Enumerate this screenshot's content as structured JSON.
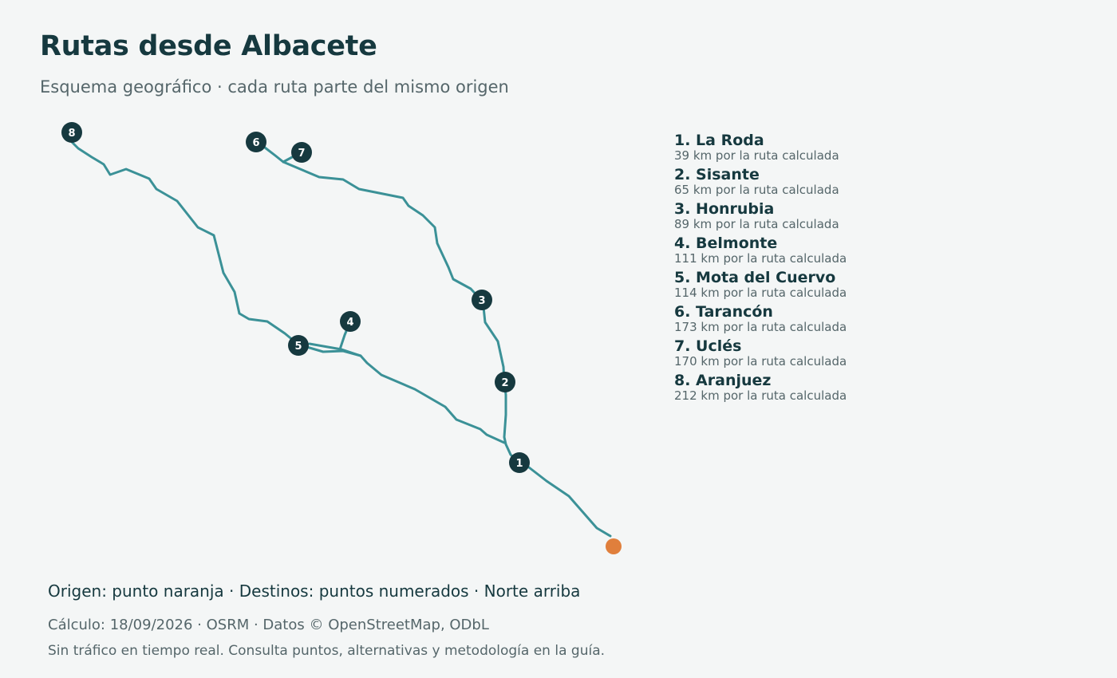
{
  "header": {
    "title": "Rutas desde Albacete",
    "subtitle": "Esquema geográfico · cada ruta parte del mismo origen"
  },
  "colors": {
    "route": "#3b9197",
    "marker": "#16393f",
    "origin": "#e07f3c",
    "title": "#16393f",
    "muted": "#55666a",
    "background": "#f4f6f6"
  },
  "map": {
    "origin": {
      "name": "Albacete",
      "icon": "origin-dot"
    },
    "destinations": [
      {
        "number": "1",
        "name": "La Roda",
        "label": "1. La Roda",
        "distance_km": 39,
        "distance_text": "39 km por la ruta calculada"
      },
      {
        "number": "2",
        "name": "Sisante",
        "label": "2. Sisante",
        "distance_km": 65,
        "distance_text": "65 km por la ruta calculada"
      },
      {
        "number": "3",
        "name": "Honrubia",
        "label": "3. Honrubia",
        "distance_km": 89,
        "distance_text": "89 km por la ruta calculada"
      },
      {
        "number": "4",
        "name": "Belmonte",
        "label": "4. Belmonte",
        "distance_km": 111,
        "distance_text": "111 km por la ruta calculada"
      },
      {
        "number": "5",
        "name": "Mota del Cuervo",
        "label": "5. Mota del Cuervo",
        "distance_km": 114,
        "distance_text": "114 km por la ruta calculada"
      },
      {
        "number": "6",
        "name": "Tarancón",
        "label": "6. Tarancón",
        "distance_km": 173,
        "distance_text": "173 km por la ruta calculada"
      },
      {
        "number": "7",
        "name": "Uclés",
        "label": "7. Uclés",
        "distance_km": 170,
        "distance_text": "170 km por la ruta calculada"
      },
      {
        "number": "8",
        "name": "Aranjuez",
        "label": "8. Aranjuez",
        "distance_km": 212,
        "distance_text": "212 km por la ruta calculada"
      }
    ]
  },
  "footer": {
    "key": "Origen: punto naranja · Destinos: puntos numerados · Norte arriba",
    "source": "Cálculo: 18/09/2026 · OSRM · Datos © OpenStreetMap, ODbL",
    "note": "Sin tráfico en tiempo real. Consulta puntos, alternativas y metodología en la guía."
  }
}
